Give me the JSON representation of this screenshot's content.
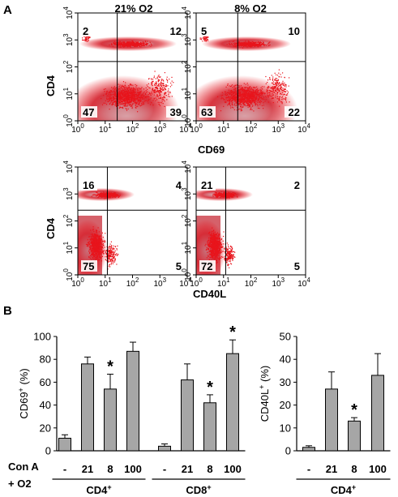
{
  "panel_a": {
    "label": "A",
    "columns": [
      "21% O2",
      "8% O2"
    ],
    "tick_labels": {
      "x": [
        "10",
        "10",
        "10",
        "10",
        "10"
      ],
      "x_exp": [
        "0",
        "1",
        "2",
        "3",
        "4"
      ],
      "y": [
        "10",
        "10",
        "10",
        "10",
        "10"
      ],
      "y_exp": [
        "0",
        "1",
        "2",
        "3",
        "4"
      ]
    },
    "rows": [
      {
        "ylabel": "CD4",
        "xlabel": "CD69",
        "plots": [
          {
            "quadrants": {
              "ul": "2",
              "ur": "12",
              "ll": "47",
              "lr": "39"
            }
          },
          {
            "quadrants": {
              "ul": "5",
              "ur": "10",
              "ll": "63",
              "lr": "22"
            }
          }
        ]
      },
      {
        "ylabel": "CD4",
        "xlabel": "CD40L",
        "plots": [
          {
            "quadrants": {
              "ul": "16",
              "ur": "4",
              "ll": "75",
              "lr": "5"
            }
          },
          {
            "quadrants": {
              "ul": "21",
              "ur": "2",
              "ll": "72",
              "lr": "5"
            }
          }
        ]
      }
    ],
    "colors": {
      "dots": "#e8141c",
      "dense": "#c8323a"
    }
  },
  "panel_b": {
    "label": "B",
    "row_labels": [
      "Con A",
      "+ O2"
    ],
    "colors": {
      "bar": "#a6a6a6",
      "axis": "#000000"
    }
  },
  "chart_data": [
    {
      "type": "bar",
      "ylabel": "CD69",
      "ylabel_sup": "+",
      "ylabel_unit": " (%)",
      "ylim": [
        0,
        100
      ],
      "yticks": [
        "0",
        "20",
        "40",
        "60",
        "80",
        "100"
      ],
      "groups": [
        {
          "name": "CD4",
          "name_sup": "+",
          "categories": [
            "-",
            "21",
            "8",
            "100"
          ],
          "values": [
            11,
            76,
            54,
            87
          ],
          "errors": [
            3,
            6,
            13,
            8
          ],
          "significant": [
            false,
            false,
            true,
            false
          ]
        },
        {
          "name": "CD8",
          "name_sup": "+",
          "categories": [
            "-",
            "21",
            "8",
            "100"
          ],
          "values": [
            4,
            62,
            42,
            85
          ],
          "errors": [
            2,
            14,
            7,
            12
          ],
          "significant": [
            false,
            false,
            true,
            true
          ]
        }
      ]
    },
    {
      "type": "bar",
      "ylabel": "CD40L",
      "ylabel_sup": "+",
      "ylabel_unit": " (%)",
      "ylim": [
        0,
        50
      ],
      "yticks": [
        "0",
        "10",
        "20",
        "30",
        "40",
        "50"
      ],
      "groups": [
        {
          "name": "CD4",
          "name_sup": "+",
          "categories": [
            "-",
            "21",
            "8",
            "100"
          ],
          "values": [
            1.5,
            27,
            13,
            33
          ],
          "errors": [
            0.7,
            7.5,
            1.5,
            9.5
          ],
          "significant": [
            false,
            false,
            true,
            false
          ]
        }
      ]
    }
  ]
}
